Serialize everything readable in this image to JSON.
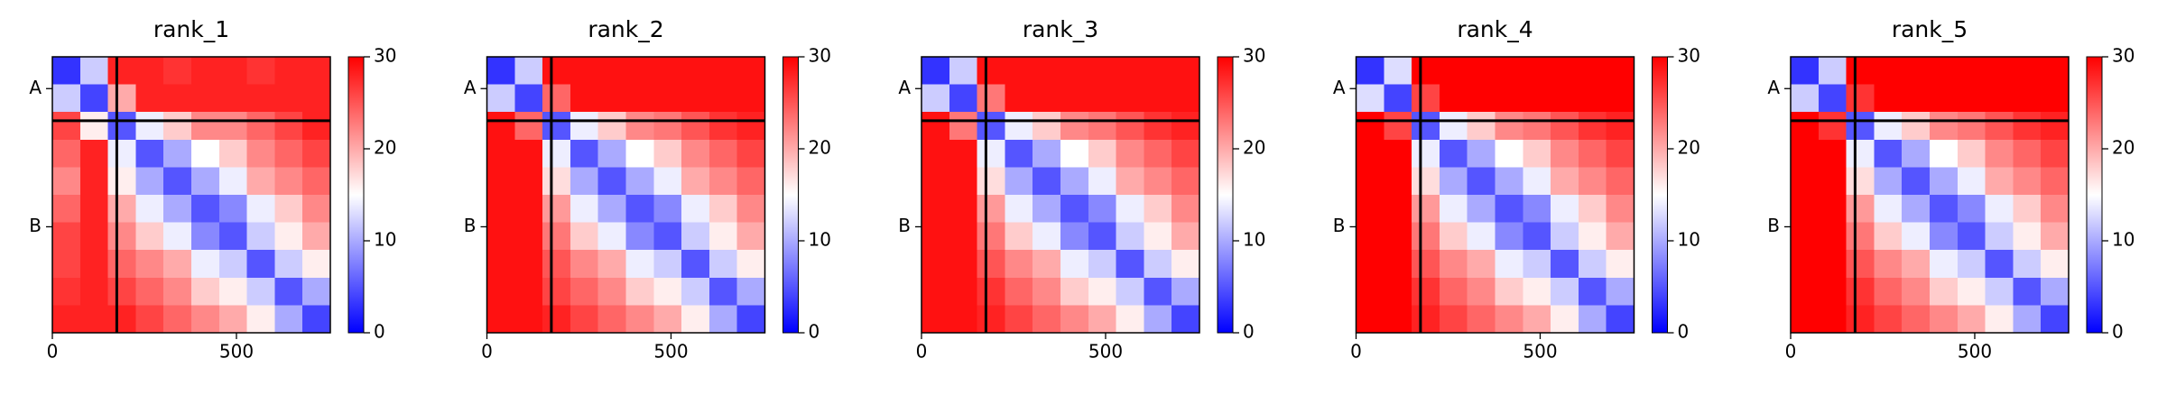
{
  "chart_data": [
    {
      "type": "heatmap",
      "title": "rank_1",
      "xlim": [
        0,
        755
      ],
      "xticks": [
        0,
        500
      ],
      "ylim": [
        755,
        0
      ],
      "yticks": [
        {
          "value": 87,
          "label": "A"
        },
        {
          "value": 465,
          "label": "B"
        }
      ],
      "chain_boundaries": [
        175
      ],
      "colormap": [
        "#0000ff",
        "#ffffff",
        "#ff0000"
      ],
      "colorbar": {
        "lim": [
          0,
          30
        ],
        "ticks": [
          0,
          10,
          20,
          30
        ]
      },
      "values": [
        [
          3,
          12,
          28,
          28,
          27,
          28,
          28,
          27,
          28,
          28
        ],
        [
          12,
          4,
          20,
          28,
          28,
          28,
          28,
          28,
          28,
          28
        ],
        [
          26,
          16,
          5,
          14,
          18,
          22,
          22,
          24,
          26,
          28
        ],
        [
          24,
          28,
          14,
          5,
          10,
          15,
          18,
          22,
          24,
          26
        ],
        [
          22,
          28,
          16,
          10,
          5,
          10,
          14,
          20,
          22,
          24
        ],
        [
          24,
          28,
          20,
          14,
          10,
          5,
          8,
          14,
          18,
          22
        ],
        [
          26,
          28,
          22,
          18,
          14,
          8,
          5,
          12,
          16,
          20
        ],
        [
          26,
          28,
          24,
          22,
          20,
          14,
          12,
          5,
          12,
          16
        ],
        [
          27,
          28,
          26,
          24,
          22,
          18,
          16,
          12,
          5,
          10
        ],
        [
          28,
          28,
          28,
          26,
          24,
          22,
          20,
          16,
          10,
          4
        ]
      ]
    },
    {
      "type": "heatmap",
      "title": "rank_2",
      "xlim": [
        0,
        755
      ],
      "xticks": [
        0,
        500
      ],
      "ylim": [
        755,
        0
      ],
      "yticks": [
        {
          "value": 87,
          "label": "A"
        },
        {
          "value": 465,
          "label": "B"
        }
      ],
      "chain_boundaries": [
        175
      ],
      "colormap": [
        "#0000ff",
        "#ffffff",
        "#ff0000"
      ],
      "colorbar": {
        "lim": [
          0,
          30
        ],
        "ticks": [
          0,
          10,
          20,
          30
        ]
      },
      "values": [
        [
          3,
          12,
          29,
          29,
          29,
          29,
          29,
          29,
          29,
          29
        ],
        [
          12,
          4,
          24,
          29,
          29,
          29,
          29,
          29,
          29,
          29
        ],
        [
          29,
          24,
          5,
          14,
          18,
          22,
          23,
          25,
          27,
          28
        ],
        [
          29,
          29,
          14,
          5,
          10,
          15,
          18,
          22,
          24,
          26
        ],
        [
          29,
          29,
          17,
          10,
          5,
          10,
          14,
          20,
          22,
          24
        ],
        [
          29,
          29,
          21,
          14,
          10,
          5,
          8,
          14,
          18,
          22
        ],
        [
          29,
          29,
          23,
          18,
          14,
          8,
          5,
          12,
          16,
          20
        ],
        [
          29,
          29,
          25,
          22,
          20,
          14,
          12,
          5,
          12,
          16
        ],
        [
          29,
          29,
          26,
          24,
          22,
          18,
          16,
          12,
          5,
          10
        ],
        [
          29,
          29,
          28,
          26,
          24,
          22,
          20,
          16,
          10,
          4
        ]
      ]
    },
    {
      "type": "heatmap",
      "title": "rank_3",
      "xlim": [
        0,
        755
      ],
      "xticks": [
        0,
        500
      ],
      "ylim": [
        755,
        0
      ],
      "yticks": [
        {
          "value": 87,
          "label": "A"
        },
        {
          "value": 465,
          "label": "B"
        }
      ],
      "chain_boundaries": [
        175
      ],
      "colormap": [
        "#0000ff",
        "#ffffff",
        "#ff0000"
      ],
      "colorbar": {
        "lim": [
          0,
          30
        ],
        "ticks": [
          0,
          10,
          20,
          30
        ]
      },
      "values": [
        [
          3,
          12,
          29,
          29,
          29,
          29,
          29,
          29,
          29,
          29
        ],
        [
          12,
          4,
          23,
          29,
          29,
          29,
          29,
          29,
          29,
          29
        ],
        [
          29,
          23,
          5,
          14,
          18,
          22,
          23,
          25,
          27,
          28
        ],
        [
          29,
          29,
          14,
          5,
          10,
          15,
          18,
          22,
          24,
          26
        ],
        [
          29,
          29,
          17,
          10,
          5,
          10,
          14,
          20,
          22,
          24
        ],
        [
          29,
          29,
          21,
          14,
          10,
          5,
          8,
          14,
          18,
          22
        ],
        [
          29,
          29,
          23,
          18,
          14,
          8,
          5,
          12,
          16,
          20
        ],
        [
          29,
          29,
          25,
          22,
          20,
          14,
          12,
          5,
          12,
          16
        ],
        [
          29,
          29,
          27,
          24,
          22,
          18,
          16,
          12,
          5,
          10
        ],
        [
          29,
          29,
          28,
          26,
          24,
          22,
          20,
          16,
          10,
          4
        ]
      ]
    },
    {
      "type": "heatmap",
      "title": "rank_4",
      "xlim": [
        0,
        755
      ],
      "xticks": [
        0,
        500
      ],
      "ylim": [
        755,
        0
      ],
      "yticks": [
        {
          "value": 87,
          "label": "A"
        },
        {
          "value": 465,
          "label": "B"
        }
      ],
      "chain_boundaries": [
        175
      ],
      "colormap": [
        "#0000ff",
        "#ffffff",
        "#ff0000"
      ],
      "colorbar": {
        "lim": [
          0,
          30
        ],
        "ticks": [
          0,
          10,
          20,
          30
        ]
      },
      "values": [
        [
          3,
          13,
          30,
          30,
          30,
          30,
          30,
          30,
          30,
          30
        ],
        [
          13,
          4,
          26,
          30,
          30,
          30,
          30,
          30,
          30,
          30
        ],
        [
          30,
          26,
          5,
          14,
          18,
          22,
          23,
          25,
          27,
          28
        ],
        [
          30,
          30,
          14,
          5,
          10,
          15,
          18,
          22,
          24,
          26
        ],
        [
          30,
          30,
          17,
          10,
          5,
          10,
          14,
          20,
          22,
          24
        ],
        [
          30,
          30,
          21,
          14,
          10,
          5,
          8,
          14,
          18,
          22
        ],
        [
          30,
          30,
          23,
          18,
          14,
          8,
          5,
          12,
          16,
          20
        ],
        [
          30,
          30,
          25,
          22,
          20,
          14,
          12,
          5,
          12,
          16
        ],
        [
          30,
          30,
          27,
          24,
          22,
          18,
          16,
          12,
          5,
          10
        ],
        [
          30,
          30,
          28,
          26,
          24,
          22,
          20,
          16,
          10,
          4
        ]
      ]
    },
    {
      "type": "heatmap",
      "title": "rank_5",
      "xlim": [
        0,
        755
      ],
      "xticks": [
        0,
        500
      ],
      "ylim": [
        755,
        0
      ],
      "yticks": [
        {
          "value": 87,
          "label": "A"
        },
        {
          "value": 465,
          "label": "B"
        }
      ],
      "chain_boundaries": [
        175
      ],
      "colormap": [
        "#0000ff",
        "#ffffff",
        "#ff0000"
      ],
      "colorbar": {
        "lim": [
          0,
          30
        ],
        "ticks": [
          0,
          10,
          20,
          30
        ]
      },
      "values": [
        [
          3,
          12,
          30,
          30,
          30,
          30,
          30,
          30,
          30,
          30
        ],
        [
          12,
          4,
          27,
          30,
          30,
          30,
          30,
          30,
          30,
          30
        ],
        [
          30,
          27,
          5,
          14,
          18,
          22,
          23,
          25,
          27,
          28
        ],
        [
          30,
          30,
          14,
          5,
          10,
          15,
          18,
          22,
          24,
          26
        ],
        [
          30,
          30,
          17,
          10,
          5,
          10,
          14,
          20,
          22,
          24
        ],
        [
          30,
          30,
          21,
          14,
          10,
          5,
          8,
          14,
          18,
          22
        ],
        [
          30,
          30,
          23,
          18,
          14,
          8,
          5,
          12,
          16,
          20
        ],
        [
          30,
          30,
          25,
          22,
          20,
          14,
          12,
          5,
          12,
          16
        ],
        [
          30,
          30,
          27,
          24,
          22,
          18,
          16,
          12,
          5,
          10
        ],
        [
          30,
          30,
          28,
          26,
          24,
          22,
          20,
          16,
          10,
          4
        ]
      ]
    }
  ]
}
